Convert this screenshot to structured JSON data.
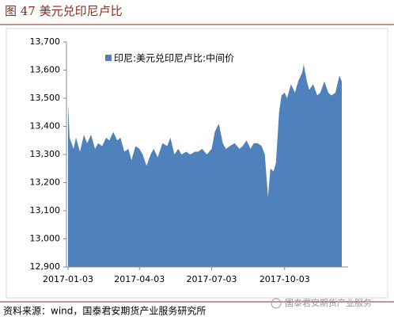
{
  "chart_data": {
    "type": "area",
    "title": "图 47 美元兑印尼卢比",
    "source": "资料来源：wind，国泰君安期货产业服务研究所",
    "watermark": "国泰君安期货产业服务",
    "legend": "upper left",
    "ylim": [
      12900,
      13700
    ],
    "yticks": [
      {
        "value": 12900,
        "label": "12,900"
      },
      {
        "value": 13000,
        "label": "13,000"
      },
      {
        "value": 13100,
        "label": "13,100"
      },
      {
        "value": 13200,
        "label": "13,200"
      },
      {
        "value": 13300,
        "label": "13,300"
      },
      {
        "value": 13400,
        "label": "13,400"
      },
      {
        "value": 13500,
        "label": "13,500"
      },
      {
        "value": 13600,
        "label": "13,600"
      },
      {
        "value": 13700,
        "label": "13,700"
      }
    ],
    "xticks": [
      "2017-01-03",
      "2017-04-03",
      "2017-07-03",
      "2017-10-03"
    ],
    "x": [
      "2017-01-03",
      "2017-01-05",
      "2017-01-10",
      "2017-01-13",
      "2017-01-18",
      "2017-01-23",
      "2017-01-27",
      "2017-02-01",
      "2017-02-06",
      "2017-02-10",
      "2017-02-15",
      "2017-02-20",
      "2017-02-24",
      "2017-03-01",
      "2017-03-06",
      "2017-03-10",
      "2017-03-15",
      "2017-03-20",
      "2017-03-24",
      "2017-03-29",
      "2017-04-03",
      "2017-04-07",
      "2017-04-12",
      "2017-04-17",
      "2017-04-21",
      "2017-04-26",
      "2017-05-02",
      "2017-05-08",
      "2017-05-12",
      "2017-05-17",
      "2017-05-22",
      "2017-05-26",
      "2017-06-01",
      "2017-06-06",
      "2017-06-12",
      "2017-06-16",
      "2017-06-21",
      "2017-06-27",
      "2017-07-03",
      "2017-07-07",
      "2017-07-12",
      "2017-07-17",
      "2017-07-21",
      "2017-07-26",
      "2017-08-01",
      "2017-08-07",
      "2017-08-11",
      "2017-08-16",
      "2017-08-21",
      "2017-08-25",
      "2017-08-30",
      "2017-09-04",
      "2017-09-08",
      "2017-09-12",
      "2017-09-15",
      "2017-09-19",
      "2017-09-22",
      "2017-09-26",
      "2017-09-29",
      "2017-10-03",
      "2017-10-06",
      "2017-10-11",
      "2017-10-16",
      "2017-10-20",
      "2017-10-25",
      "2017-10-27",
      "2017-10-31",
      "2017-11-03",
      "2017-11-08",
      "2017-11-13",
      "2017-11-17",
      "2017-11-22",
      "2017-11-27",
      "2017-12-01",
      "2017-12-06",
      "2017-12-11",
      "2017-12-14"
    ],
    "series": [
      {
        "name": "印尼:美元兑印尼卢比:中间价",
        "color": "#4f81bd",
        "values": [
          13480,
          13360,
          13320,
          13360,
          13310,
          13370,
          13340,
          13370,
          13320,
          13340,
          13330,
          13360,
          13350,
          13380,
          13350,
          13360,
          13310,
          13320,
          13280,
          13330,
          13320,
          13300,
          13260,
          13300,
          13320,
          13290,
          13340,
          13330,
          13360,
          13300,
          13320,
          13300,
          13310,
          13300,
          13310,
          13310,
          13320,
          13300,
          13320,
          13380,
          13410,
          13340,
          13320,
          13330,
          13340,
          13320,
          13330,
          13350,
          13320,
          13340,
          13340,
          13330,
          13300,
          13150,
          13250,
          13240,
          13270,
          13450,
          13510,
          13520,
          13500,
          13550,
          13520,
          13560,
          13590,
          13620,
          13560,
          13530,
          13550,
          13510,
          13520,
          13560,
          13520,
          13510,
          13520,
          13580,
          13560
        ]
      }
    ]
  }
}
